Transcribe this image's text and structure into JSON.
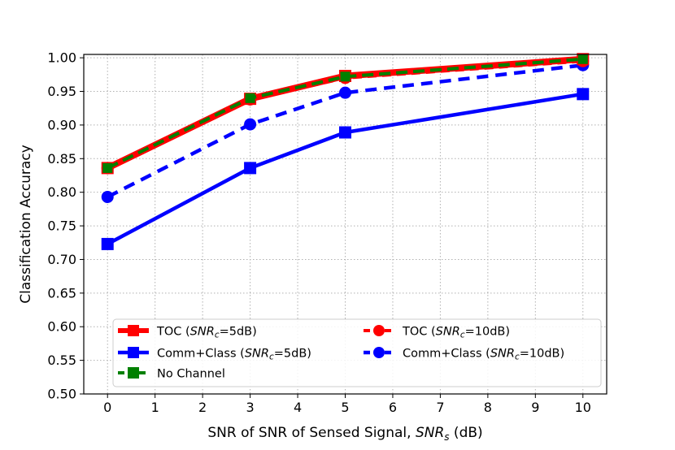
{
  "chart_data": {
    "type": "line",
    "title": "",
    "xlabel": "SNR of SNR of Sensed Signal, ",
    "xlabel_math": "SNR",
    "xlabel_sub": "s",
    "xlabel_unit": " (dB)",
    "ylabel": "Classification Accuracy",
    "xlim": [
      -0.5,
      10.5
    ],
    "ylim": [
      0.5,
      1.005
    ],
    "x_ticks": [
      "0",
      "1",
      "2",
      "3",
      "4",
      "5",
      "6",
      "7",
      "8",
      "9",
      "10"
    ],
    "y_ticks": [
      "0.50",
      "0.55",
      "0.60",
      "0.65",
      "0.70",
      "0.75",
      "0.80",
      "0.85",
      "0.90",
      "0.95",
      "1.00"
    ],
    "grid": true,
    "legend_position": "bottom-center",
    "series": [
      {
        "id": "toc5",
        "label_pre": "TOC (",
        "label_math": "SNR",
        "label_sub": "c",
        "label_post": "=5dB)",
        "color": "#ff0000",
        "line_style": "solid",
        "marker": "square",
        "x": [
          0,
          3,
          5,
          10
        ],
        "y": [
          0.836,
          0.939,
          0.973,
          0.998
        ]
      },
      {
        "id": "comm5",
        "label_pre": "Comm+Class  (",
        "label_math": "SNR",
        "label_sub": "c",
        "label_post": "=5dB)",
        "color": "#0000ff",
        "line_style": "solid",
        "marker": "square",
        "x": [
          0,
          3,
          5,
          10
        ],
        "y": [
          0.723,
          0.836,
          0.889,
          0.946
        ]
      },
      {
        "id": "nochan",
        "label_pre": "No Channel",
        "label_math": "",
        "label_sub": "",
        "label_post": "",
        "color": "#008000",
        "line_style": "dashed",
        "marker": "square",
        "x": [
          0,
          3,
          5,
          10
        ],
        "y": [
          0.836,
          0.94,
          0.972,
          0.998
        ]
      },
      {
        "id": "toc10",
        "label_pre": "TOC (",
        "label_math": "SNR",
        "label_sub": "c",
        "label_post": "=10dB)",
        "color": "#ff0000",
        "line_style": "dashed",
        "marker": "circle",
        "x": [
          0,
          3,
          5,
          10
        ],
        "y": [
          0.836,
          0.938,
          0.97,
          0.995
        ]
      },
      {
        "id": "comm10",
        "label_pre": "Comm+Class (",
        "label_math": "SNR",
        "label_sub": "c",
        "label_post": "=10dB)",
        "color": "#0000ff",
        "line_style": "dashed",
        "marker": "circle",
        "x": [
          0,
          3,
          5,
          10
        ],
        "y": [
          0.793,
          0.901,
          0.948,
          0.989
        ]
      }
    ]
  }
}
